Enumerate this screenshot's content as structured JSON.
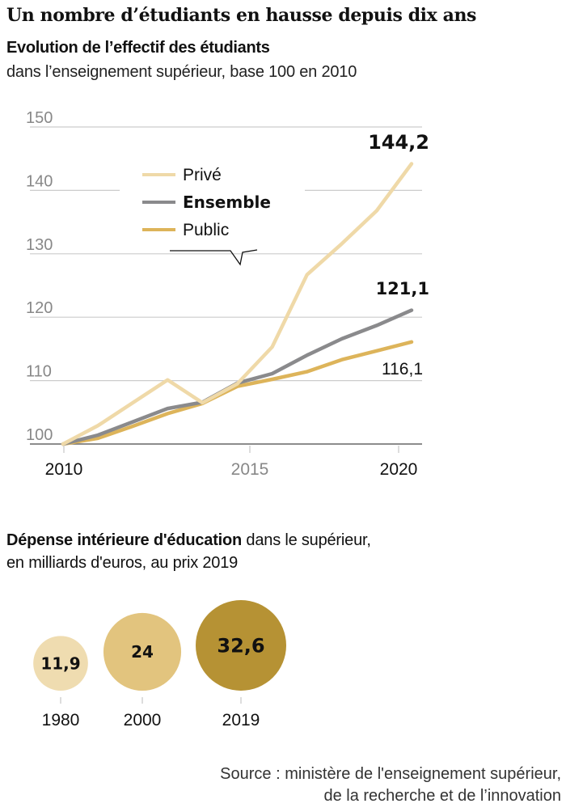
{
  "title": "Un nombre d’étudiants en hausse depuis dix ans",
  "chart_data": [
    {
      "type": "line",
      "title": "Evolution de l’effectif des étudiants",
      "subtitle": "dans l’enseignement supérieur, base 100 en 2010",
      "xlabel": "",
      "ylabel": "",
      "x": [
        2010,
        2011,
        2012,
        2013,
        2014,
        2015,
        2016,
        2017,
        2018,
        2019,
        2020
      ],
      "x_ticks": [
        "2010",
        "2015",
        "2020"
      ],
      "y_ticks": [
        "100",
        "110",
        "120",
        "130",
        "140",
        "150"
      ],
      "ylim": [
        100,
        150
      ],
      "grid": true,
      "legend_position": "top-center",
      "series": [
        {
          "name": "Privé",
          "color": "#EFD9A8",
          "values": [
            100,
            102.9,
            106.5,
            110.1,
            106.5,
            109.5,
            115.3,
            126.7,
            131.6,
            136.8,
            144.2
          ],
          "end_label": "144,2"
        },
        {
          "name": "Ensemble",
          "color": "#8A8A8C",
          "values": [
            100,
            101.4,
            103.5,
            105.6,
            106.6,
            109.6,
            111.1,
            114.0,
            116.6,
            118.7,
            121.1
          ],
          "end_label": "121,1"
        },
        {
          "name": "Public",
          "color": "#DDB45A",
          "values": [
            100,
            100.9,
            102.8,
            104.8,
            106.4,
            109.1,
            110.2,
            111.4,
            113.3,
            114.7,
            116.1
          ],
          "end_label": "116,1"
        }
      ]
    },
    {
      "type": "bubble",
      "title": "Dépense intérieure d'éducation",
      "subtitle": "dans le supérieur, en milliards d'euros, au prix 2019",
      "categories": [
        "1980",
        "2000",
        "2019"
      ],
      "values": [
        11.9,
        24,
        32.6
      ],
      "value_labels": [
        "11,9",
        "24",
        "32,6"
      ],
      "colors": [
        "#EFDCB0",
        "#E2C47E",
        "#B69234"
      ]
    }
  ],
  "legend": {
    "prive": "Privé",
    "ensemble": "Ensemble",
    "public": "Public"
  },
  "section2": {
    "title_bold": "Dépense intérieure d'éducation",
    "title_rest": " dans le supérieur,",
    "line2": "en milliards d'euros, au prix 2019"
  },
  "source": {
    "line1": "Source : ministère de l'enseignement supérieur,",
    "line2": "de la recherche et de l’innovation"
  }
}
